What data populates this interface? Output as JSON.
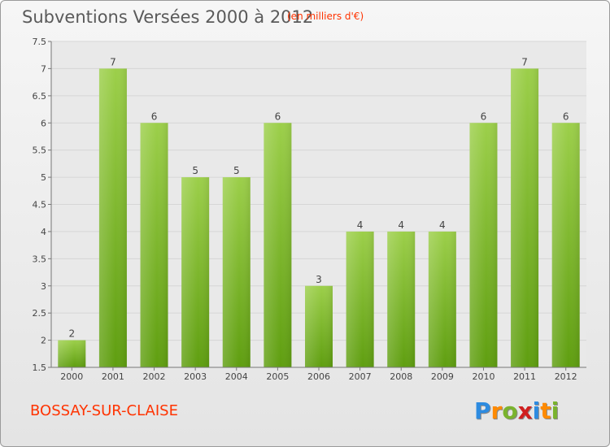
{
  "header": {
    "title": "Subventions Versées 2000 à 2012",
    "subtitle": "(en milliers d'€)"
  },
  "footer": {
    "commune": "BOSSAY-SUR-CLAISE",
    "logo_text": "Proxiti"
  },
  "colors": {
    "bar_light": "#9ccf4a",
    "bar_dark": "#5f9e10",
    "title": "#5a5a5a",
    "accent": "#ff3300",
    "logo_letters": [
      "#2d8be0",
      "#ff8a00",
      "#7ab32e",
      "#d01f1f",
      "#2d8be0",
      "#ff8a00",
      "#7ab32e"
    ]
  },
  "chart_data": {
    "type": "bar",
    "categories": [
      "2000",
      "2001",
      "2002",
      "2003",
      "2004",
      "2005",
      "2006",
      "2007",
      "2008",
      "2009",
      "2010",
      "2011",
      "2012"
    ],
    "values": [
      2,
      7,
      6,
      5,
      5,
      6,
      3,
      4,
      4,
      4,
      6,
      7,
      6
    ],
    "data_labels": [
      "2",
      "7",
      "6",
      "5",
      "5",
      "6",
      "3",
      "4",
      "4",
      "4",
      "6",
      "7",
      "6"
    ],
    "ylim": [
      1.5,
      7.5
    ],
    "yticks": [
      "1.5",
      "2",
      "2.5",
      "3",
      "3.5",
      "4",
      "4.5",
      "5",
      "5.5",
      "6",
      "6.5",
      "7",
      "7.5"
    ],
    "grid": true,
    "xlabel": "",
    "ylabel": ""
  }
}
